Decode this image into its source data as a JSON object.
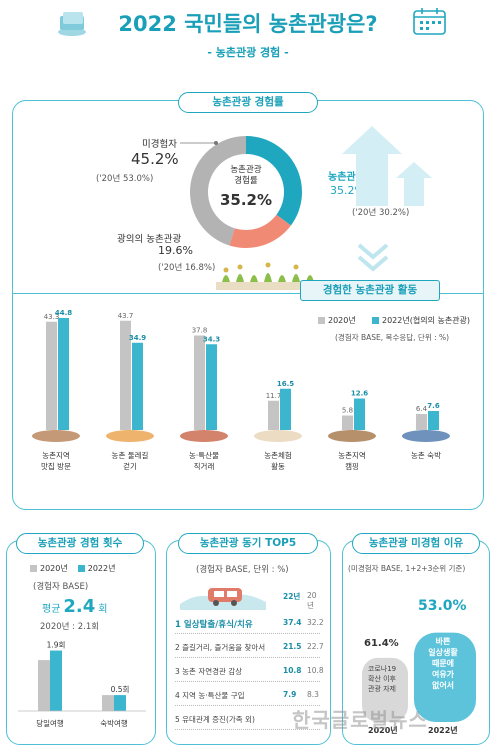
{
  "header": {
    "title": "2022 국민들의 농촌관광은?",
    "subtitle": "- 농촌관광 경험 -"
  },
  "experience": {
    "pill": "농촌관광 경험률",
    "center_label": "농촌관광\n경험률",
    "center_value": "35.2%",
    "non_label": "미경험자",
    "non_value": "45.2%",
    "non_prev": "('20년 53.0%)",
    "exp_label": "농촌관광 경험",
    "exp_value": "35.2%",
    "exp_prev": "('20년 30.2%)",
    "broad_label": "광의의 농촌관광",
    "broad_value": "19.6%",
    "broad_prev": "('20년 16.8%)",
    "colors": {
      "non": "#b3b3b3",
      "exp": "#1fa7c0",
      "broad": "#f08a74"
    }
  },
  "activity": {
    "banner": "경험한 농촌관광 활동",
    "legend_2020": "2020년",
    "legend_2022": "2022년(협의의 농촌관광)",
    "base_note": "(경험자 BASE, 복수응답, 단위 : %)"
  },
  "chart_data": [
    {
      "type": "bar",
      "categories": [
        "농촌지역\n맛집 방문",
        "농촌 둘레길\n걷기",
        "농·특산물\n직거래",
        "농촌체험\n활동",
        "농촌지역\n캠핑",
        "농촌 숙박"
      ],
      "series": [
        {
          "name": "2020년",
          "values": [
            43.3,
            43.7,
            37.8,
            11.7,
            5.8,
            6.4
          ],
          "color": "#c4c4c4"
        },
        {
          "name": "2022년(협의의 농촌관광)",
          "values": [
            44.8,
            34.9,
            34.3,
            16.5,
            12.6,
            7.6
          ],
          "color": "#3cb6cf"
        }
      ],
      "ylim": [
        0,
        50
      ],
      "ylabel": ""
    },
    {
      "type": "bar",
      "categories": [
        "당일여행",
        "숙박여행"
      ],
      "series": [
        {
          "name": "2020년",
          "values": [
            1.6,
            0.5
          ],
          "color": "#c4c4c4"
        },
        {
          "name": "2022년",
          "values": [
            1.9,
            0.5
          ],
          "color": "#3cb6cf"
        }
      ],
      "data_labels": [
        "1.9회",
        "0.5회"
      ],
      "ylim": [
        0,
        2.2
      ]
    },
    {
      "type": "table",
      "columns": [
        "",
        "22년",
        "20년"
      ],
      "rows": [
        [
          "1 일상탈출/휴식/치유",
          "37.4",
          "32.2"
        ],
        [
          "2 즐길거리, 즐거움을 찾아서",
          "21.5",
          "22.7"
        ],
        [
          "3 농촌 자연경관 감상",
          "10.8",
          "10.8"
        ],
        [
          "4 지역 농·특산물 구입",
          "7.9",
          "8.3"
        ],
        [
          "5 유대관계 증진(가족 외)",
          "",
          ""
        ]
      ]
    },
    {
      "type": "bar",
      "categories": [
        "2020년",
        "2022년"
      ],
      "values": [
        61.4,
        53.0
      ],
      "ylim": [
        0,
        70
      ]
    }
  ],
  "count_panel": {
    "pill": "농촌관광 경험 횟수",
    "legend_2020": "2020년",
    "legend_2022": "2022년",
    "base": "(경험자 BASE)",
    "avg_prefix": "평균",
    "avg_value": "2.4",
    "avg_unit": "회",
    "avg_prev": "2020년 : 2.1회"
  },
  "motive_panel": {
    "pill": "농촌관광 동기 TOP5",
    "base": "(경험자 BASE, 단위 : %)"
  },
  "reason_panel": {
    "pill": "농촌관광 미경험 이유",
    "base": "(미경험자 BASE, 1+2+3순위 기준)",
    "v2020": "61.4%",
    "v2022": "53.0%",
    "reason2020": "코로나19\n확산 이후\n관광 자제",
    "reason2022": "바쁜\n일상생활\n때문에\n여유가\n없어서",
    "cat2020": "2020년",
    "cat2022": "2022년"
  },
  "watermark": "한국글로벌뉴스"
}
